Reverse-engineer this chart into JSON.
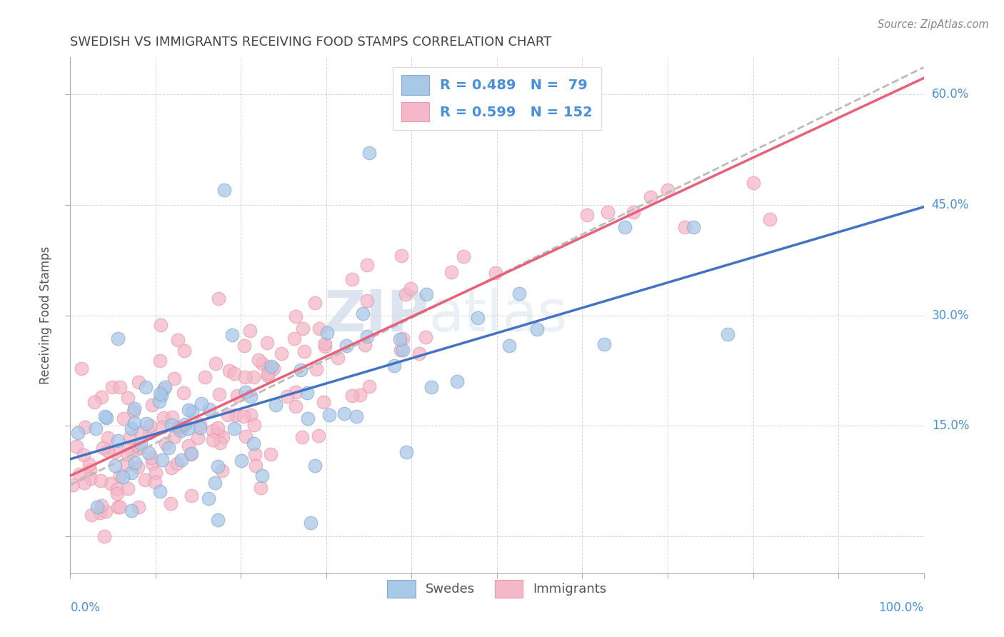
{
  "title": "SWEDISH VS IMMIGRANTS RECEIVING FOOD STAMPS CORRELATION CHART",
  "source_text": "Source: ZipAtlas.com",
  "ylabel": "Receiving Food Stamps",
  "xlim": [
    0.0,
    1.0
  ],
  "ylim": [
    -0.05,
    0.65
  ],
  "swedes_color": "#a8c8e8",
  "immigrants_color": "#f4b8c8",
  "swedes_line_color": "#4472c4",
  "immigrants_line_color": "#e8607a",
  "dashed_line_color": "#bbbbbb",
  "swedes_R": 0.489,
  "swedes_N": 79,
  "immigrants_R": 0.599,
  "immigrants_N": 152,
  "watermark_ZIP": "ZIP",
  "watermark_atlas": "atlas",
  "background_color": "#ffffff",
  "grid_color": "#cccccc",
  "axis_label_color": "#4a90d9",
  "title_color": "#444444",
  "source_color": "#888888",
  "ylabel_color": "#555555"
}
